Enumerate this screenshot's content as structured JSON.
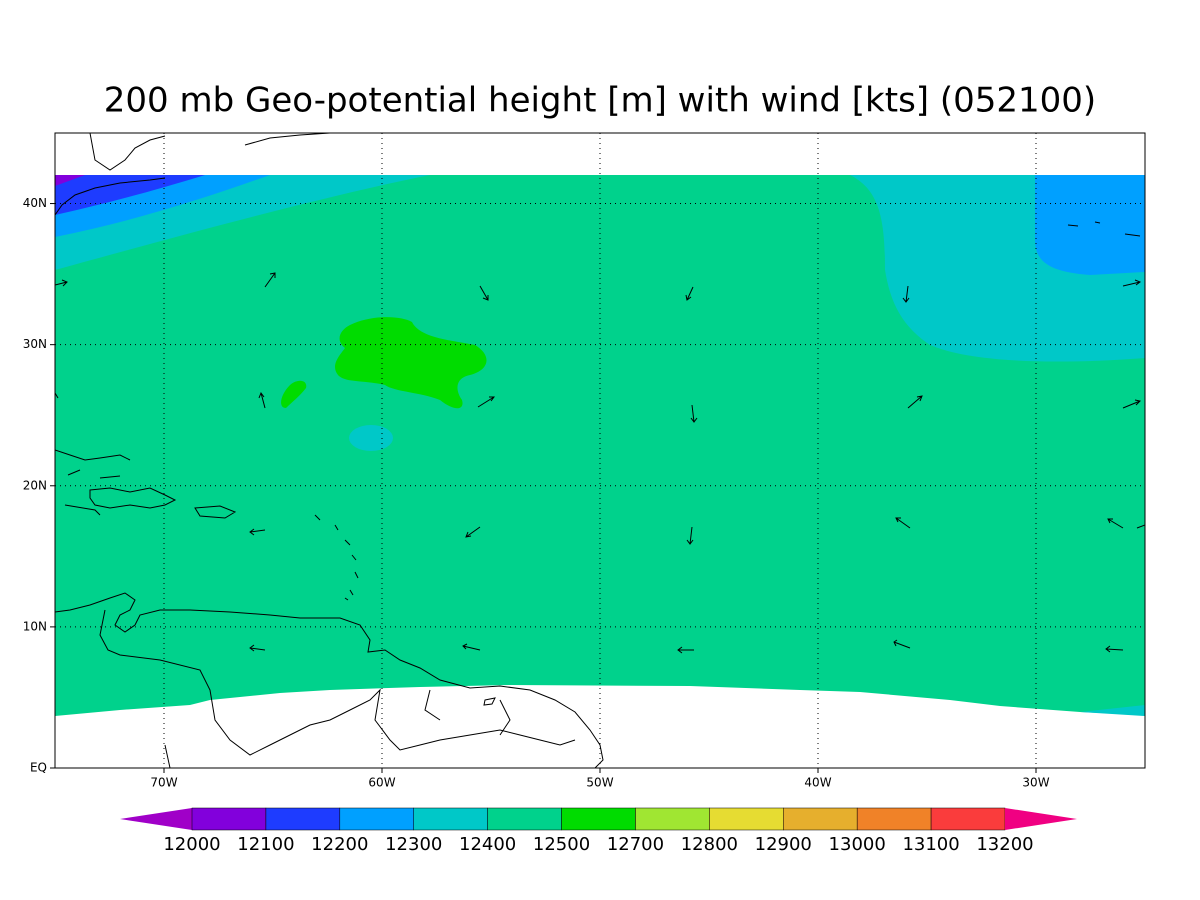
{
  "map": {
    "title": "200 mb Geo-potential height [m] with wind [kts] (052100)",
    "lon_range": [
      -75,
      -25
    ],
    "lat_range": [
      0,
      45
    ],
    "lon_ticks": [
      {
        "value": -70,
        "label": "70W"
      },
      {
        "value": -60,
        "label": "60W"
      },
      {
        "value": -50,
        "label": "50W"
      },
      {
        "value": -40,
        "label": "40W"
      },
      {
        "value": -30,
        "label": "30W"
      }
    ],
    "lat_ticks": [
      {
        "value": 0,
        "label": "EQ"
      },
      {
        "value": 10,
        "label": "10N"
      },
      {
        "value": 20,
        "label": "20N"
      },
      {
        "value": 30,
        "label": "30N"
      },
      {
        "value": 40,
        "label": "40N"
      }
    ],
    "grid": true,
    "colorbar": {
      "labels": [
        "12000",
        "12100",
        "12200",
        "12300",
        "12400",
        "12500",
        "12700",
        "12800",
        "12900",
        "13000",
        "13100",
        "13200"
      ],
      "colors": [
        "#a000c8",
        "#8200dc",
        "#1e3cff",
        "#00a0ff",
        "#00c8c8",
        "#00d28c",
        "#00dc00",
        "#a0e632",
        "#e6dc32",
        "#e6af2d",
        "#f08228",
        "#fa3c3c",
        "#f00082"
      ]
    }
  }
}
